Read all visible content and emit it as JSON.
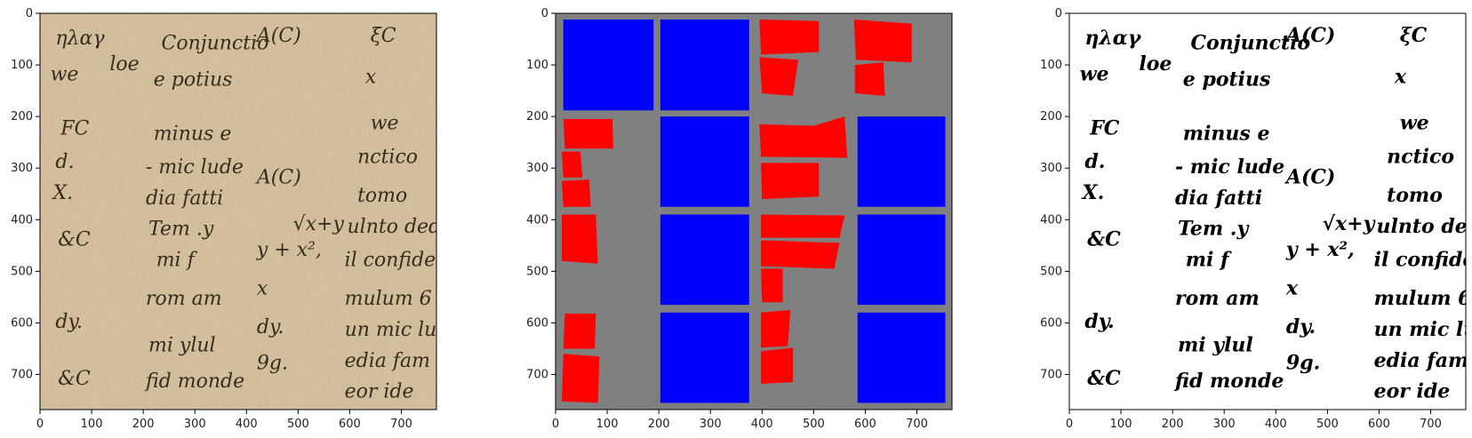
{
  "chart_data": [
    {
      "type": "image",
      "panel": "original-manuscript",
      "title": "",
      "xticks": [
        0,
        100,
        200,
        300,
        400,
        500,
        600,
        700
      ],
      "yticks": [
        0,
        100,
        200,
        300,
        400,
        500,
        600,
        700
      ],
      "xlim": [
        0,
        768
      ],
      "ylim": [
        768,
        0
      ],
      "background": "#d9c4a0",
      "ink": "#3b2a1e",
      "handwriting": [
        {
          "text": "ηλαγ",
          "x": 30,
          "y": 60
        },
        {
          "text": "we",
          "x": 20,
          "y": 130
        },
        {
          "text": "FC",
          "x": 40,
          "y": 235
        },
        {
          "text": "d.",
          "x": 30,
          "y": 300
        },
        {
          "text": "X.",
          "x": 25,
          "y": 360
        },
        {
          "text": "&C",
          "x": 35,
          "y": 450
        },
        {
          "text": "dy.",
          "x": 30,
          "y": 610
        },
        {
          "text": "&C",
          "x": 35,
          "y": 720
        },
        {
          "text": "loe",
          "x": 135,
          "y": 110
        },
        {
          "text": "Conjunctio",
          "x": 235,
          "y": 70
        },
        {
          "text": "e potius",
          "x": 220,
          "y": 140
        },
        {
          "text": "minus e",
          "x": 220,
          "y": 245
        },
        {
          "text": "- mic lude",
          "x": 205,
          "y": 310
        },
        {
          "text": "dia fatti",
          "x": 205,
          "y": 370
        },
        {
          "text": "Tem .y",
          "x": 210,
          "y": 430
        },
        {
          "text": "mi f",
          "x": 225,
          "y": 490
        },
        {
          "text": "rom am",
          "x": 205,
          "y": 565
        },
        {
          "text": "mi ylul",
          "x": 210,
          "y": 655
        },
        {
          "text": "fid monde",
          "x": 205,
          "y": 725
        },
        {
          "text": "A(C)",
          "x": 420,
          "y": 55
        },
        {
          "text": "A(C)",
          "x": 420,
          "y": 330
        },
        {
          "text": "√x+y",
          "x": 490,
          "y": 420
        },
        {
          "text": "y + x²,",
          "x": 420,
          "y": 470
        },
        {
          "text": "x",
          "x": 420,
          "y": 545
        },
        {
          "text": "dy.",
          "x": 420,
          "y": 620
        },
        {
          "text": "9g.",
          "x": 420,
          "y": 690
        },
        {
          "text": "ξC",
          "x": 640,
          "y": 55
        },
        {
          "text": "x",
          "x": 630,
          "y": 135
        },
        {
          "text": "we",
          "x": 640,
          "y": 225
        },
        {
          "text": "nctico",
          "x": 615,
          "y": 290
        },
        {
          "text": "tomo",
          "x": 615,
          "y": 365
        },
        {
          "text": "ulnto ded",
          "x": 595,
          "y": 425
        },
        {
          "text": "il confide",
          "x": 590,
          "y": 490
        },
        {
          "text": "mulum 6",
          "x": 590,
          "y": 565
        },
        {
          "text": "un mic lui",
          "x": 590,
          "y": 625
        },
        {
          "text": "edia fam",
          "x": 590,
          "y": 685
        },
        {
          "text": "eor ide",
          "x": 590,
          "y": 745
        }
      ]
    },
    {
      "type": "image",
      "panel": "segmentation-mask",
      "title": "",
      "xticks": [
        0,
        100,
        200,
        300,
        400,
        500,
        600,
        700
      ],
      "yticks": [
        0,
        100,
        200,
        300,
        400,
        500,
        600,
        700
      ],
      "xlim": [
        0,
        768
      ],
      "ylim": [
        768,
        0
      ],
      "background": "#808080",
      "blue": "#0000ff",
      "red": "#ff0000",
      "blue_regions": [
        [
          [
            15,
            12
          ],
          [
            190,
            12
          ],
          [
            190,
            188
          ],
          [
            15,
            188
          ]
        ],
        [
          [
            203,
            12
          ],
          [
            375,
            12
          ],
          [
            375,
            188
          ],
          [
            203,
            188
          ]
        ],
        [
          [
            203,
            200
          ],
          [
            375,
            200
          ],
          [
            375,
            375
          ],
          [
            203,
            375
          ]
        ],
        [
          [
            203,
            390
          ],
          [
            375,
            390
          ],
          [
            375,
            565
          ],
          [
            203,
            565
          ]
        ],
        [
          [
            203,
            580
          ],
          [
            375,
            580
          ],
          [
            375,
            755
          ],
          [
            203,
            755
          ]
        ],
        [
          [
            585,
            200
          ],
          [
            755,
            200
          ],
          [
            755,
            375
          ],
          [
            585,
            375
          ]
        ],
        [
          [
            585,
            390
          ],
          [
            755,
            390
          ],
          [
            755,
            565
          ],
          [
            585,
            565
          ]
        ],
        [
          [
            585,
            580
          ],
          [
            755,
            580
          ],
          [
            755,
            755
          ],
          [
            585,
            755
          ]
        ]
      ],
      "red_regions": [
        [
          [
            15,
            205
          ],
          [
            110,
            205
          ],
          [
            112,
            262
          ],
          [
            18,
            262
          ]
        ],
        [
          [
            12,
            268
          ],
          [
            48,
            268
          ],
          [
            52,
            318
          ],
          [
            15,
            318
          ]
        ],
        [
          [
            12,
            325
          ],
          [
            65,
            322
          ],
          [
            68,
            375
          ],
          [
            15,
            375
          ]
        ],
        [
          [
            12,
            390
          ],
          [
            78,
            390
          ],
          [
            82,
            485
          ],
          [
            12,
            480
          ]
        ],
        [
          [
            18,
            582
          ],
          [
            78,
            582
          ],
          [
            76,
            650
          ],
          [
            15,
            650
          ]
        ],
        [
          [
            15,
            660
          ],
          [
            85,
            665
          ],
          [
            82,
            755
          ],
          [
            12,
            752
          ]
        ],
        [
          [
            395,
            12
          ],
          [
            510,
            15
          ],
          [
            510,
            75
          ],
          [
            398,
            80
          ]
        ],
        [
          [
            395,
            85
          ],
          [
            470,
            90
          ],
          [
            460,
            160
          ],
          [
            400,
            155
          ]
        ],
        [
          [
            578,
            12
          ],
          [
            690,
            20
          ],
          [
            690,
            95
          ],
          [
            582,
            90
          ]
        ],
        [
          [
            580,
            100
          ],
          [
            635,
            95
          ],
          [
            638,
            160
          ],
          [
            580,
            155
          ]
        ],
        [
          [
            395,
            215
          ],
          [
            500,
            218
          ],
          [
            560,
            200
          ],
          [
            565,
            280
          ],
          [
            398,
            278
          ]
        ],
        [
          [
            398,
            290
          ],
          [
            510,
            290
          ],
          [
            510,
            355
          ],
          [
            400,
            360
          ]
        ],
        [
          [
            398,
            390
          ],
          [
            560,
            392
          ],
          [
            550,
            435
          ],
          [
            398,
            435
          ]
        ],
        [
          [
            398,
            440
          ],
          [
            550,
            445
          ],
          [
            540,
            495
          ],
          [
            398,
            490
          ]
        ],
        [
          [
            398,
            495
          ],
          [
            440,
            495
          ],
          [
            440,
            560
          ],
          [
            400,
            560
          ]
        ],
        [
          [
            398,
            580
          ],
          [
            455,
            575
          ],
          [
            450,
            645
          ],
          [
            398,
            648
          ]
        ],
        [
          [
            398,
            655
          ],
          [
            460,
            648
          ],
          [
            460,
            715
          ],
          [
            398,
            718
          ]
        ]
      ]
    },
    {
      "type": "image",
      "panel": "binarized",
      "title": "",
      "xticks": [
        0,
        100,
        200,
        300,
        400,
        500,
        600,
        700
      ],
      "yticks": [
        0,
        100,
        200,
        300,
        400,
        500,
        600,
        700
      ],
      "xlim": [
        0,
        768
      ],
      "ylim": [
        768,
        0
      ],
      "background": "#ffffff",
      "ink": "#000000"
    }
  ]
}
